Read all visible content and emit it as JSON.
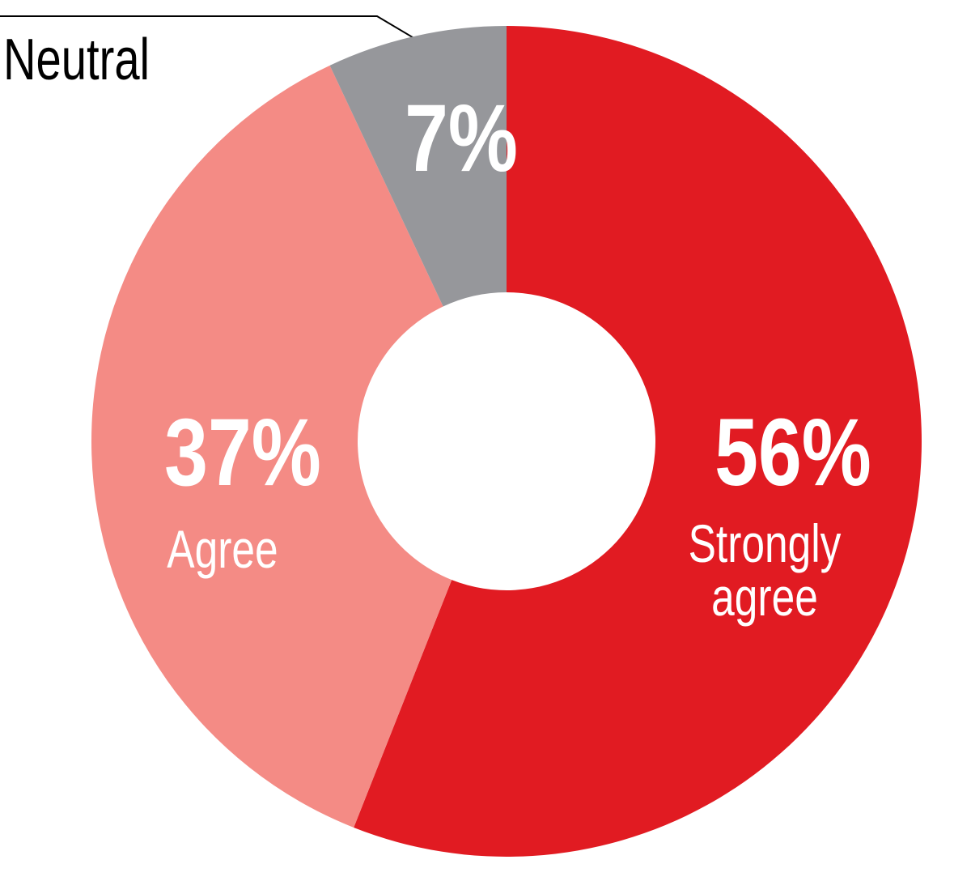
{
  "chart_data": {
    "type": "pie",
    "categories": [
      "Strongly agree",
      "Agree",
      "Neutral"
    ],
    "values": [
      56,
      37,
      7
    ],
    "value_labels": [
      "56%",
      "37%",
      "7%"
    ],
    "colors": [
      "#e11b22",
      "#f48b85",
      "#96979b"
    ]
  }
}
